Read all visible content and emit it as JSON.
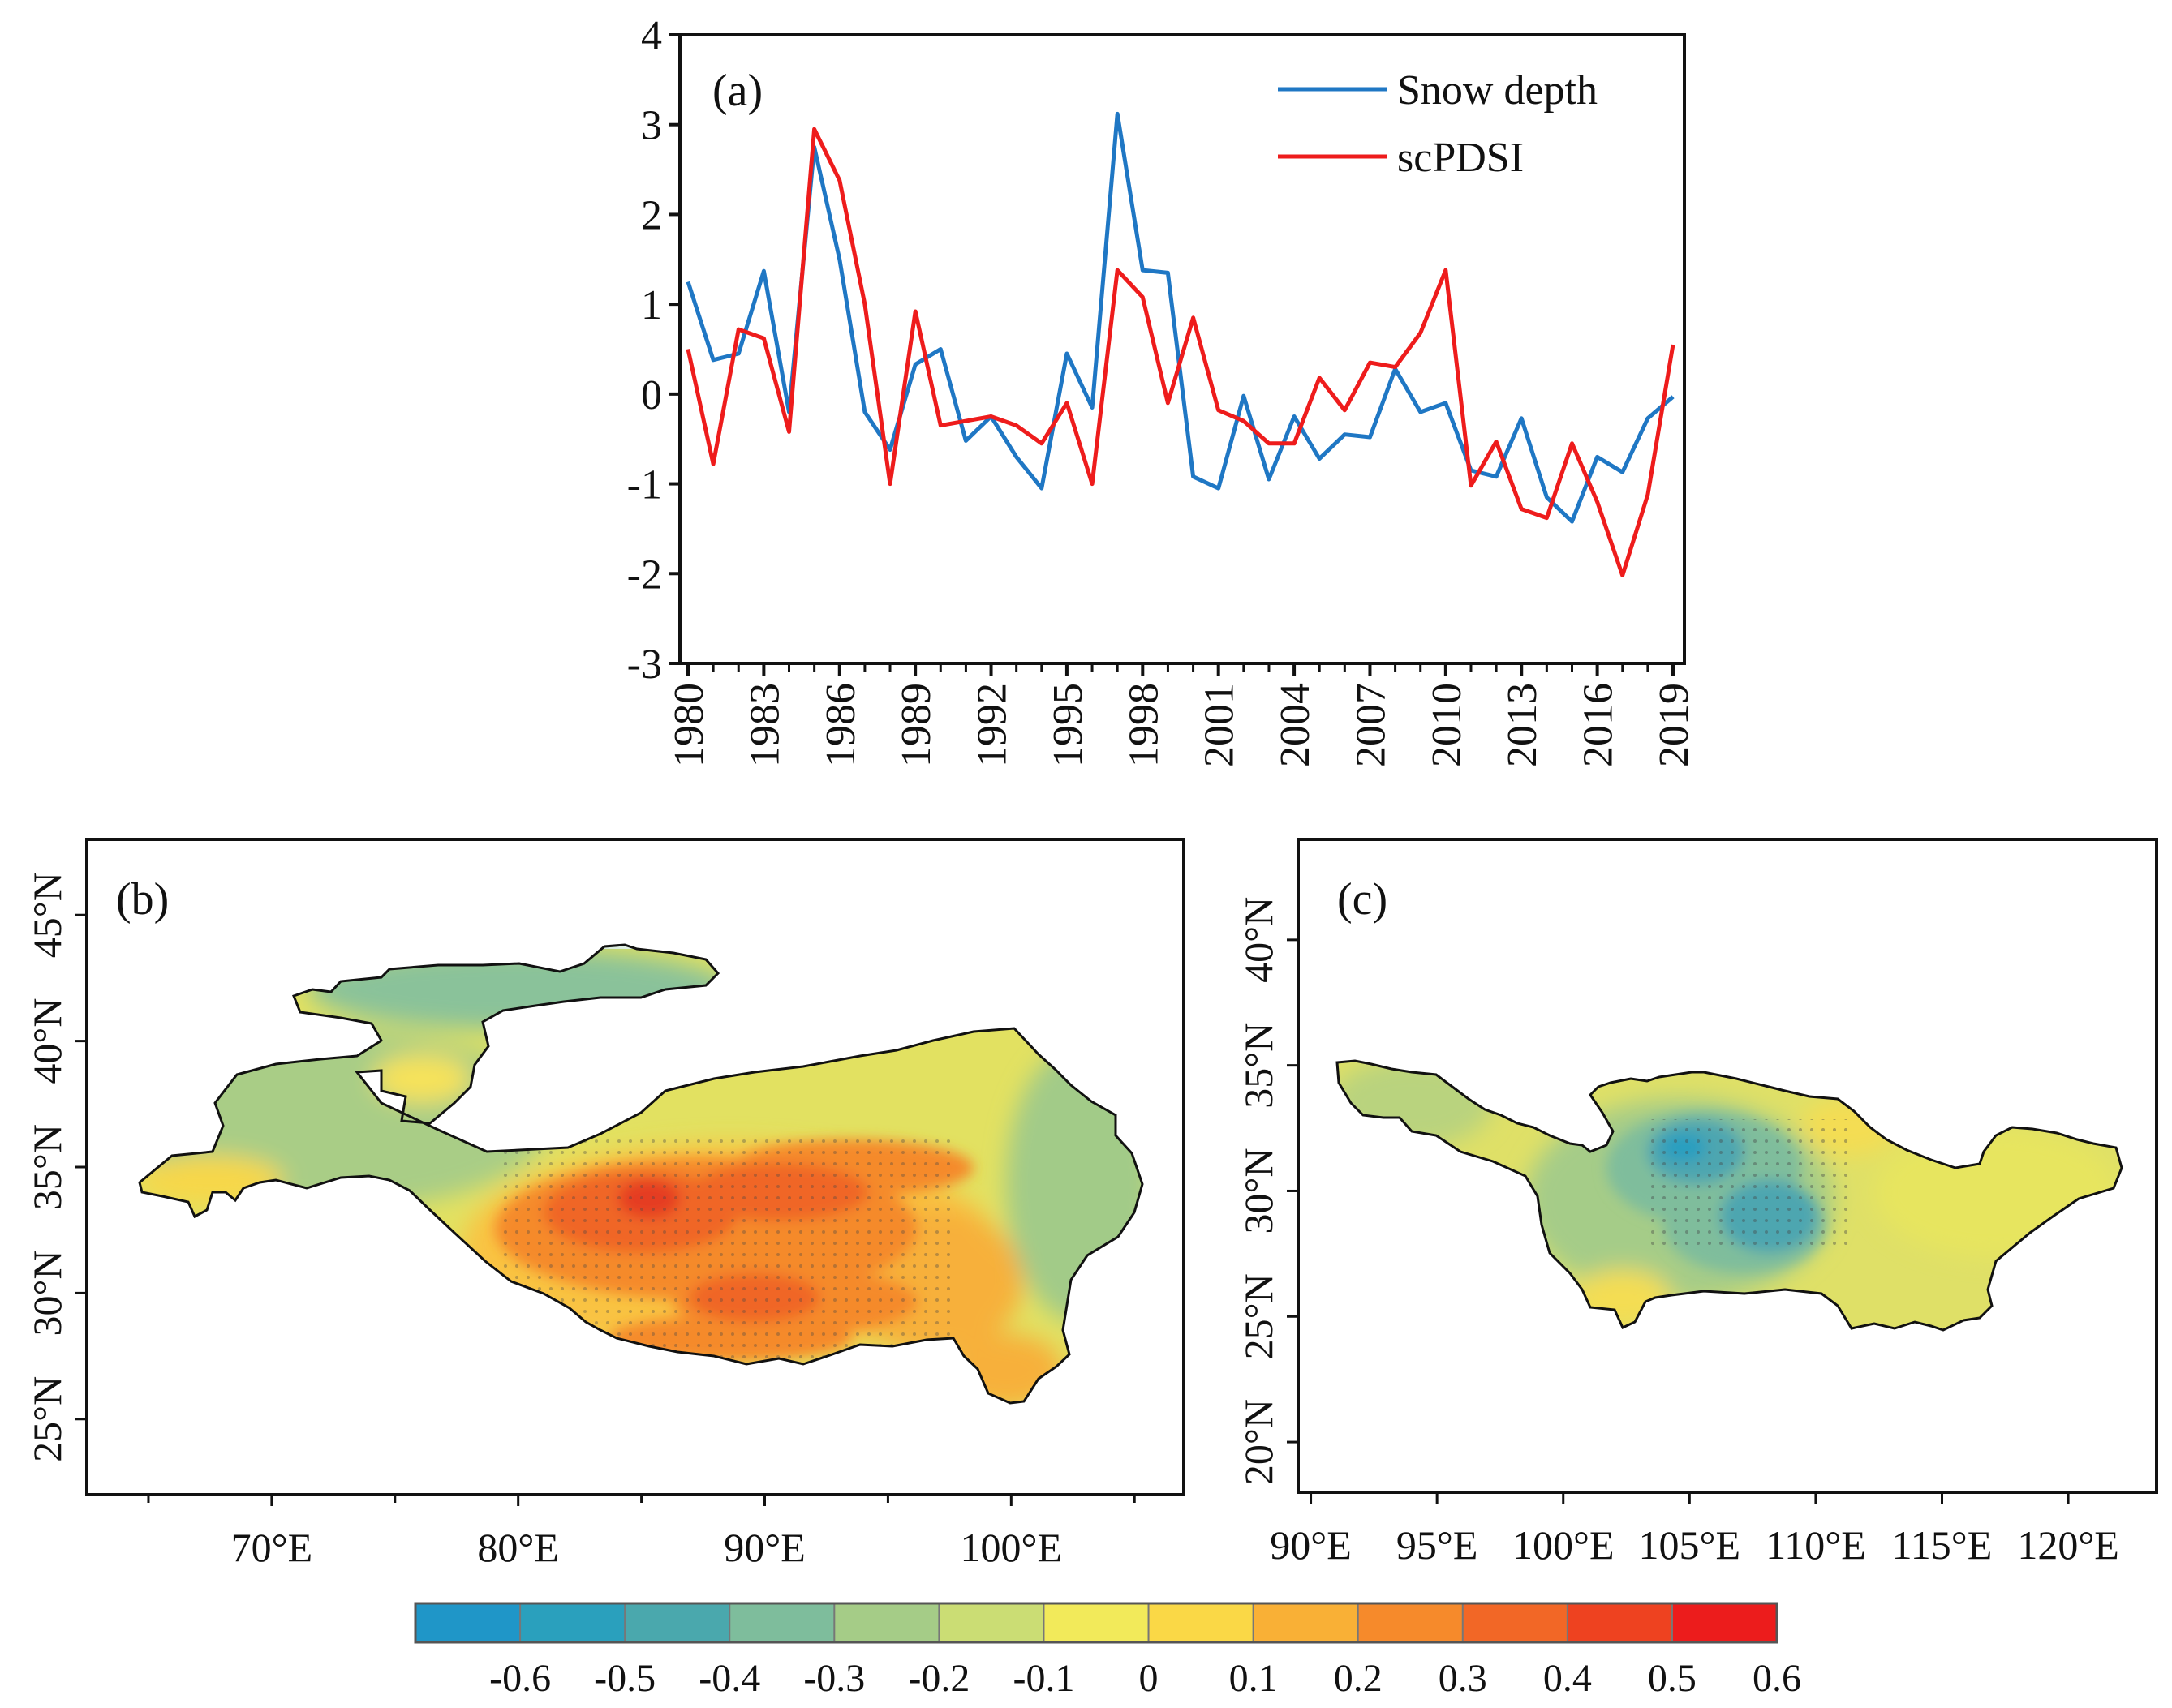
{
  "chart_data": [
    {
      "type": "line",
      "panel_label": "(a)",
      "title": "",
      "xlabel": "",
      "ylabel": "",
      "x": [
        1980,
        1981,
        1982,
        1983,
        1984,
        1985,
        1986,
        1987,
        1988,
        1989,
        1990,
        1991,
        1992,
        1993,
        1994,
        1995,
        1996,
        1997,
        1998,
        1999,
        2000,
        2001,
        2002,
        2003,
        2004,
        2005,
        2006,
        2007,
        2008,
        2009,
        2010,
        2011,
        2012,
        2013,
        2014,
        2015,
        2016,
        2017,
        2018,
        2019
      ],
      "xticks": [
        "1980",
        "1983",
        "1986",
        "1989",
        "1992",
        "1995",
        "1998",
        "2001",
        "2004",
        "2007",
        "2010",
        "2013",
        "2016",
        "2019"
      ],
      "ylim": [
        -3,
        4
      ],
      "yticks": [
        "4",
        "3",
        "2",
        "1",
        "0",
        "-1",
        "-2",
        "-3"
      ],
      "series": [
        {
          "name": "Snow depth",
          "color": "#1f77c4",
          "values": [
            1.25,
            0.38,
            0.45,
            1.37,
            -0.2,
            2.75,
            1.5,
            -0.2,
            -0.62,
            0.33,
            0.5,
            -0.52,
            -0.25,
            -0.7,
            -1.05,
            0.45,
            -0.15,
            3.12,
            1.38,
            1.35,
            -0.92,
            -1.05,
            -0.02,
            -0.95,
            -0.25,
            -0.72,
            -0.45,
            -0.48,
            0.28,
            -0.2,
            -0.1,
            -0.85,
            -0.92,
            -0.27,
            -1.15,
            -1.42,
            -0.7,
            -0.87,
            -0.27,
            -0.03
          ]
        },
        {
          "name": "scPDSI",
          "color": "#ee1c1c",
          "values": [
            0.5,
            -0.78,
            0.72,
            0.62,
            -0.42,
            2.95,
            2.38,
            1.0,
            -1.0,
            0.92,
            -0.35,
            -0.3,
            -0.25,
            -0.35,
            -0.55,
            -0.1,
            -1.0,
            1.38,
            1.08,
            -0.1,
            0.85,
            -0.18,
            -0.3,
            -0.55,
            -0.55,
            0.18,
            -0.18,
            0.35,
            0.3,
            0.68,
            1.38,
            -1.02,
            -0.53,
            -1.28,
            -1.38,
            -0.55,
            -1.2,
            -2.02,
            -1.12,
            0.55
          ]
        }
      ]
    },
    {
      "type": "heatmap",
      "panel_label": "(b)",
      "title": "",
      "xticks": [
        "70°E",
        "80°E",
        "90°E",
        "100°E"
      ],
      "yticks": [
        "45°N",
        "40°N",
        "35°N",
        "30°N",
        "25°N"
      ],
      "lon_range": [
        62.5,
        107
      ],
      "lat_range": [
        22,
        48
      ]
    },
    {
      "type": "heatmap",
      "panel_label": "(c)",
      "title": "",
      "xticks": [
        "90°E",
        "95°E",
        "100°E",
        "105°E",
        "110°E",
        "115°E",
        "120°E"
      ],
      "yticks": [
        "40°N",
        "35°N",
        "30°N",
        "25°N",
        "20°N"
      ],
      "lon_range": [
        89.5,
        123.5
      ],
      "lat_range": [
        18,
        44
      ]
    },
    {
      "type": "colorbar",
      "ticks": [
        "-0.6",
        "-0.5",
        "-0.4",
        "-0.3",
        "-0.2",
        "-0.1",
        "0",
        "0.1",
        "0.2",
        "0.3",
        "0.4",
        "0.5",
        "0.6"
      ],
      "colors": [
        "#1f96c8",
        "#2aa0bd",
        "#4aa8ad",
        "#7ebd9c",
        "#a5cc87",
        "#cbdd74",
        "#f2ea5a",
        "#fad846",
        "#f9b036",
        "#f68a2b",
        "#f26726",
        "#ee4220",
        "#ec1c1c"
      ]
    }
  ]
}
